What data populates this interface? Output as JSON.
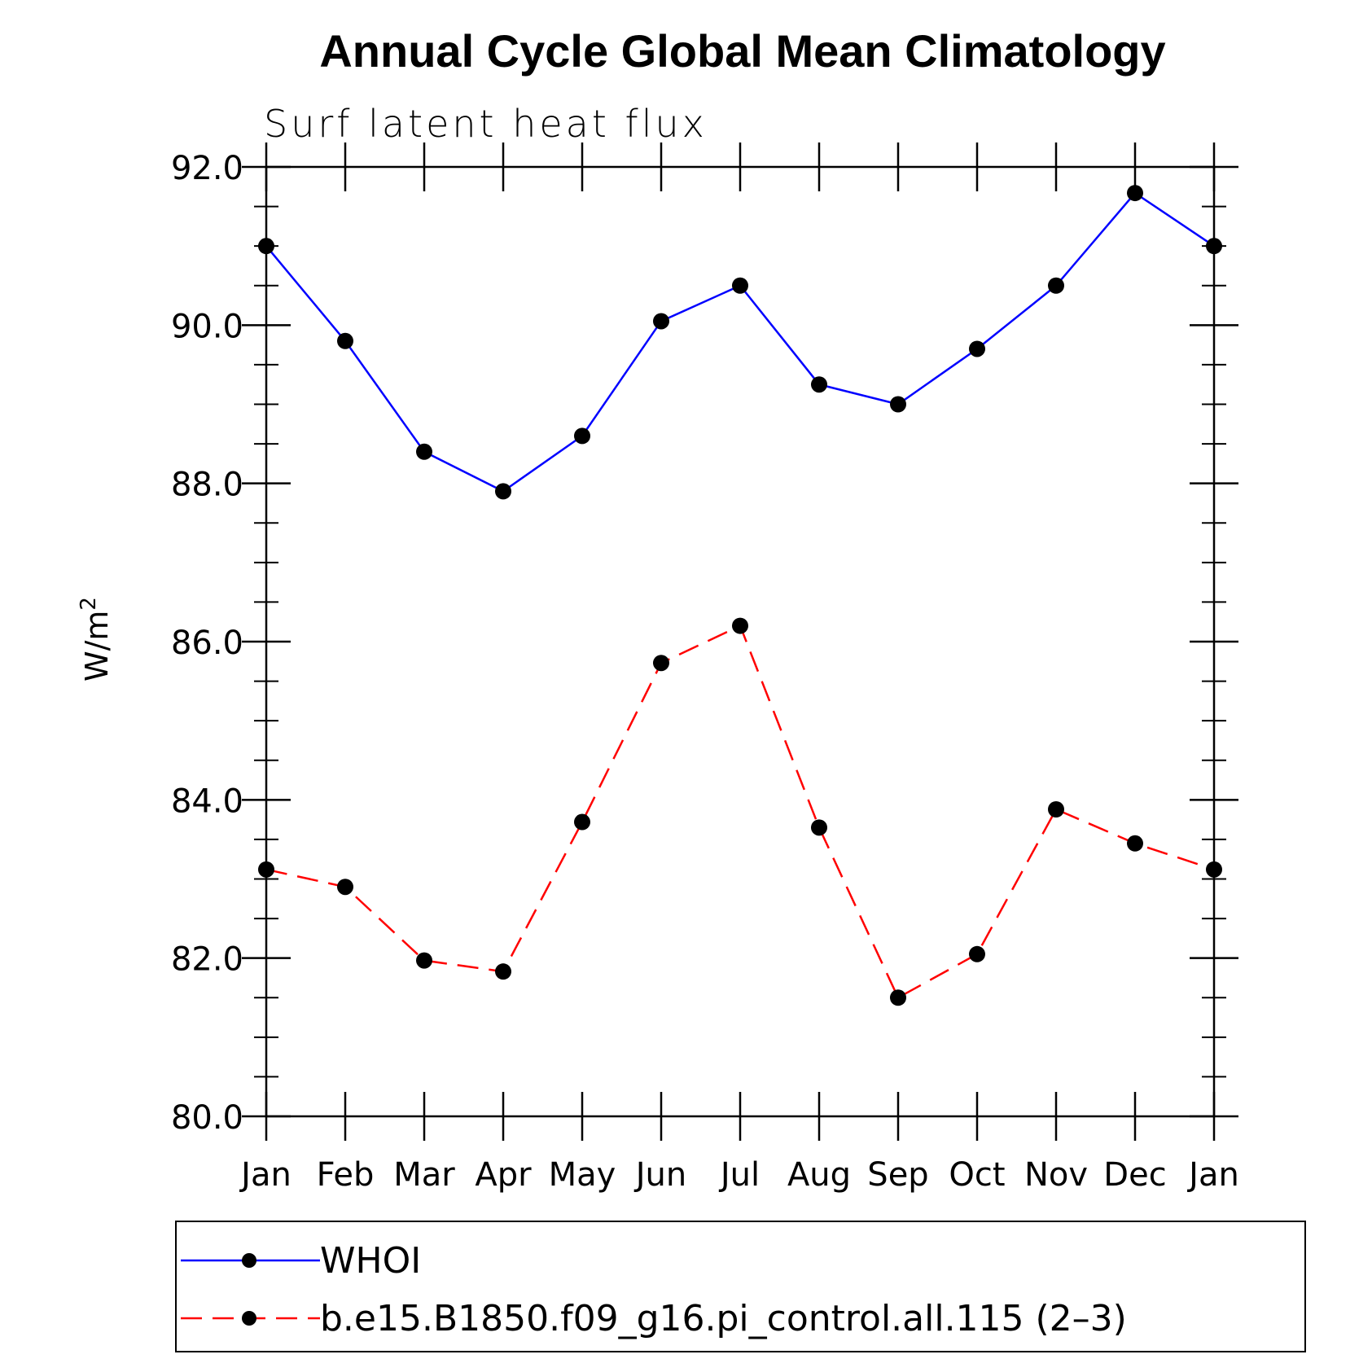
{
  "chart_data": {
    "type": "line",
    "title": "Annual Cycle Global Mean Climatology",
    "subtitle": "Surf latent heat flux",
    "ylabel": "W/m",
    "ylabel_sup": "2",
    "xlabel": "",
    "categories": [
      "Jan",
      "Feb",
      "Mar",
      "Apr",
      "May",
      "Jun",
      "Jul",
      "Aug",
      "Sep",
      "Oct",
      "Nov",
      "Dec",
      "Jan"
    ],
    "ylim": [
      80,
      92
    ],
    "yticks": [
      "80.0",
      "82.0",
      "84.0",
      "86.0",
      "88.0",
      "90.0",
      "92.0"
    ],
    "ytick_values": [
      80,
      82,
      84,
      86,
      88,
      90,
      92
    ],
    "grid": false,
    "legend_position": "bottom",
    "series": [
      {
        "name": "WHOI",
        "color": "#0000ff",
        "style": "solid",
        "values": [
          91.0,
          89.8,
          88.4,
          87.9,
          88.6,
          90.05,
          90.5,
          89.25,
          89.0,
          89.7,
          90.5,
          91.67,
          91.0
        ]
      },
      {
        "name": "b.e15.B1850.f09_g16.pi_control.all.115 (2–3)",
        "color": "#ff0000",
        "style": "dashed",
        "values": [
          83.12,
          82.9,
          81.97,
          81.83,
          83.72,
          85.73,
          86.2,
          83.65,
          81.5,
          82.05,
          83.88,
          83.45,
          83.12
        ]
      }
    ]
  }
}
